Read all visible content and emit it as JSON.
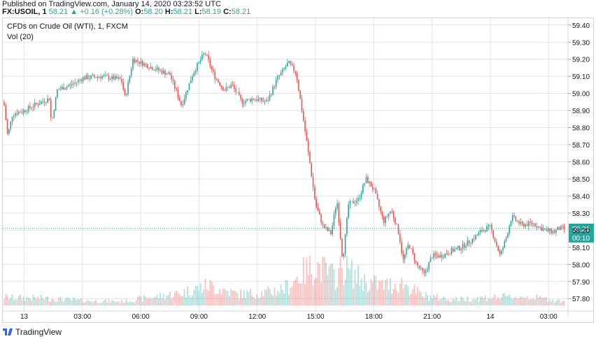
{
  "header": {
    "published": "Published on TradingView.com, January 14, 2020 03:23:52 UTC",
    "symbol": "FX:USOIL, 1",
    "last": "58.21",
    "change": "+0.16 (+0.28%)",
    "o_label": "O:",
    "o_value": "58.20",
    "h_label": "H:",
    "h_value": "58.21",
    "l_label": "L:",
    "l_value": "58.19",
    "c_label": "C:",
    "c_value": "58.21"
  },
  "legend": {
    "title": "CFDs on Crude Oil (WTI), 1, FXCM",
    "volume": "Vol (20)"
  },
  "footer": {
    "brand": "TradingView"
  },
  "colors": {
    "up": "#26a69a",
    "down": "#ef5350",
    "grid": "#e0e3eb",
    "price_tag": "#26a69a"
  },
  "chart_data": {
    "type": "candlestick",
    "title": "CFDs on Crude Oil (WTI), 1, FXCM",
    "ylim": [
      57.76,
      59.44
    ],
    "y_ticks": [
      "59.40",
      "59.30",
      "59.20",
      "59.10",
      "59.00",
      "58.90",
      "58.80",
      "58.70",
      "58.60",
      "58.50",
      "58.40",
      "58.30",
      "58.20",
      "58.10",
      "58.00",
      "57.90",
      "57.80"
    ],
    "x_ticks": [
      "13",
      "03:00",
      "06:00",
      "09:00",
      "12:00",
      "15:00",
      "18:00",
      "21:00",
      "14",
      "03:00"
    ],
    "x_tick_hours": [
      0,
      3,
      6,
      9,
      12,
      15,
      18,
      21,
      24,
      27
    ],
    "x_range_hours": [
      -1.1,
      28.0
    ],
    "current_price": 58.21,
    "current_price_label": "58.21",
    "countdown": "00:10",
    "price_path": [
      [
        -1.05,
        58.95
      ],
      [
        -0.85,
        58.75
      ],
      [
        -0.6,
        58.88
      ],
      [
        0.0,
        58.9
      ],
      [
        0.5,
        58.93
      ],
      [
        1.3,
        58.97
      ],
      [
        1.4,
        58.82
      ],
      [
        1.7,
        59.02
      ],
      [
        2.6,
        59.06
      ],
      [
        3.0,
        59.09
      ],
      [
        4.0,
        59.1
      ],
      [
        5.0,
        59.08
      ],
      [
        5.2,
        58.97
      ],
      [
        5.6,
        59.2
      ],
      [
        6.4,
        59.16
      ],
      [
        7.5,
        59.11
      ],
      [
        8.1,
        58.93
      ],
      [
        8.7,
        59.12
      ],
      [
        9.3,
        59.24
      ],
      [
        9.8,
        59.1
      ],
      [
        10.3,
        59.02
      ],
      [
        10.7,
        59.05
      ],
      [
        11.2,
        58.95
      ],
      [
        11.8,
        58.97
      ],
      [
        12.5,
        58.95
      ],
      [
        13.0,
        59.08
      ],
      [
        13.6,
        59.18
      ],
      [
        14.0,
        59.12
      ],
      [
        14.3,
        58.9
      ],
      [
        14.7,
        58.6
      ],
      [
        15.0,
        58.35
      ],
      [
        15.4,
        58.22
      ],
      [
        15.8,
        58.18
      ],
      [
        16.1,
        58.38
      ],
      [
        16.4,
        58.02
      ],
      [
        16.7,
        58.35
      ],
      [
        17.2,
        58.38
      ],
      [
        17.6,
        58.5
      ],
      [
        18.0,
        58.44
      ],
      [
        18.5,
        58.25
      ],
      [
        18.9,
        58.32
      ],
      [
        19.3,
        58.18
      ],
      [
        19.5,
        58.02
      ],
      [
        19.8,
        58.12
      ],
      [
        20.2,
        58.0
      ],
      [
        20.6,
        57.94
      ],
      [
        21.0,
        58.05
      ],
      [
        21.5,
        58.05
      ],
      [
        22.0,
        58.08
      ],
      [
        22.5,
        58.1
      ],
      [
        23.0,
        58.14
      ],
      [
        23.6,
        58.2
      ],
      [
        24.0,
        58.22
      ],
      [
        24.5,
        58.05
      ],
      [
        24.8,
        58.15
      ],
      [
        25.1,
        58.28
      ],
      [
        25.6,
        58.23
      ],
      [
        26.2,
        58.24
      ],
      [
        26.8,
        58.2
      ],
      [
        27.3,
        58.19
      ],
      [
        27.5,
        58.21
      ]
    ],
    "volume_profile": [
      [
        -1.0,
        0.2
      ],
      [
        1.0,
        0.18
      ],
      [
        3.0,
        0.12
      ],
      [
        5.0,
        0.1
      ],
      [
        8.0,
        0.3
      ],
      [
        9.5,
        0.5
      ],
      [
        11.0,
        0.28
      ],
      [
        12.5,
        0.32
      ],
      [
        13.5,
        0.45
      ],
      [
        14.3,
        0.8
      ],
      [
        15.0,
        1.0
      ],
      [
        16.0,
        0.7
      ],
      [
        16.4,
        0.95
      ],
      [
        17.5,
        0.6
      ],
      [
        18.5,
        0.5
      ],
      [
        19.5,
        0.55
      ],
      [
        20.5,
        0.25
      ],
      [
        22.0,
        0.15
      ],
      [
        24.0,
        0.2
      ],
      [
        26.0,
        0.22
      ],
      [
        27.5,
        0.12
      ]
    ]
  }
}
